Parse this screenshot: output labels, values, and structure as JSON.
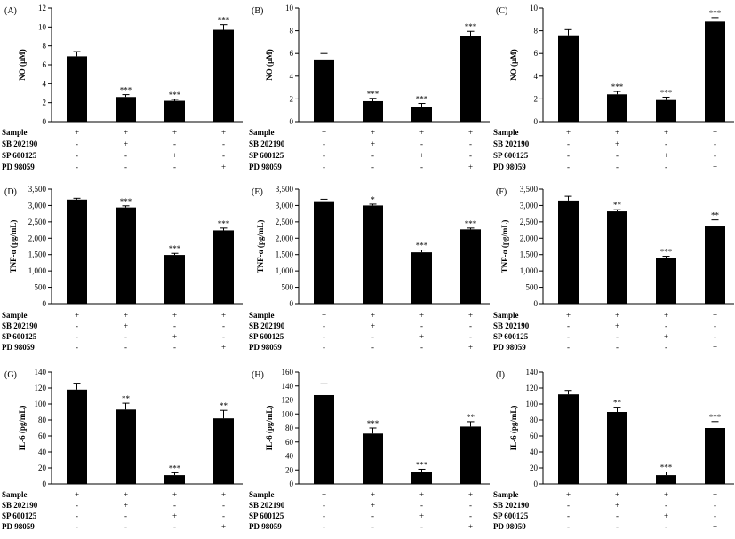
{
  "figure": {
    "row_labels": [
      "Sample",
      "SB 202190",
      "SP 600125",
      "PD 98059"
    ],
    "treatment_matrix": [
      [
        "+",
        "+",
        "+",
        "+"
      ],
      [
        "-",
        "+",
        "-",
        "-"
      ],
      [
        "-",
        "-",
        "+",
        "-"
      ],
      [
        "-",
        "-",
        "-",
        "+"
      ]
    ]
  },
  "chart_data": [
    {
      "type": "bar",
      "panel": "(A)",
      "ylabel": "NO (µM)",
      "ylim": [
        0,
        12
      ],
      "yticks": [
        0,
        2,
        4,
        6,
        8,
        10,
        12
      ],
      "tick_labels": [
        "0",
        "2",
        "4",
        "6",
        "8",
        "10",
        "12"
      ],
      "values": [
        6.9,
        2.6,
        2.2,
        9.7
      ],
      "errors": [
        0.5,
        0.25,
        0.15,
        0.55
      ],
      "significance": [
        "",
        "***",
        "***",
        "***"
      ]
    },
    {
      "type": "bar",
      "panel": "(B)",
      "ylabel": "NO (µM)",
      "ylim": [
        0,
        10
      ],
      "yticks": [
        0,
        2,
        4,
        6,
        8,
        10
      ],
      "tick_labels": [
        "0",
        "2",
        "4",
        "6",
        "8",
        "10"
      ],
      "values": [
        5.4,
        1.8,
        1.3,
        7.5
      ],
      "errors": [
        0.6,
        0.25,
        0.3,
        0.45
      ],
      "significance": [
        "",
        "***",
        "***",
        "***"
      ]
    },
    {
      "type": "bar",
      "panel": "(C)",
      "ylabel": "NO (µM)",
      "ylim": [
        0,
        10
      ],
      "yticks": [
        0,
        2,
        4,
        6,
        8,
        10
      ],
      "tick_labels": [
        "0",
        "2",
        "4",
        "6",
        "8",
        "10"
      ],
      "values": [
        7.6,
        2.4,
        1.9,
        8.8
      ],
      "errors": [
        0.5,
        0.25,
        0.25,
        0.35
      ],
      "significance": [
        "",
        "***",
        "***",
        "***"
      ]
    },
    {
      "type": "bar",
      "panel": "(D)",
      "ylabel": "TNF-α (pg/mL)",
      "ylim": [
        0,
        3500
      ],
      "yticks": [
        0,
        500,
        1000,
        1500,
        2000,
        2500,
        3000,
        3500
      ],
      "tick_labels": [
        "0",
        "500",
        "1,000",
        "1,500",
        "2,000",
        "2,500",
        "3,000",
        "3,500"
      ],
      "values": [
        3180,
        2940,
        1490,
        2240
      ],
      "errors": [
        40,
        50,
        50,
        70
      ],
      "significance": [
        "",
        "***",
        "***",
        "***"
      ]
    },
    {
      "type": "bar",
      "panel": "(E)",
      "ylabel": "TNF-α (pg/mL)",
      "ylim": [
        0,
        3500
      ],
      "yticks": [
        0,
        500,
        1000,
        1500,
        2000,
        2500,
        3000,
        3500
      ],
      "tick_labels": [
        "0",
        "500",
        "1,000",
        "1,500",
        "2,000",
        "2,500",
        "3,000",
        "3,500"
      ],
      "values": [
        3130,
        3000,
        1570,
        2270
      ],
      "errors": [
        60,
        40,
        70,
        40
      ],
      "significance": [
        "",
        "*",
        "***",
        "***"
      ]
    },
    {
      "type": "bar",
      "panel": "(F)",
      "ylabel": "TNF-α (pg/mL)",
      "ylim": [
        0,
        3500
      ],
      "yticks": [
        0,
        500,
        1000,
        1500,
        2000,
        2500,
        3000,
        3500
      ],
      "tick_labels": [
        "0",
        "500",
        "1,000",
        "1,500",
        "2,000",
        "2,500",
        "3,000",
        "3,500"
      ],
      "values": [
        3150,
        2820,
        1390,
        2360
      ],
      "errors": [
        130,
        50,
        60,
        200
      ],
      "significance": [
        "",
        "**",
        "***",
        "**"
      ]
    },
    {
      "type": "bar",
      "panel": "(G)",
      "ylabel": "IL-6 (pg/mL)",
      "ylim": [
        0,
        140
      ],
      "yticks": [
        0,
        20,
        40,
        60,
        80,
        100,
        120,
        140
      ],
      "tick_labels": [
        "0",
        "20",
        "40",
        "60",
        "80",
        "100",
        "120",
        "140"
      ],
      "values": [
        118,
        93,
        11,
        82
      ],
      "errors": [
        8,
        8,
        3,
        10
      ],
      "significance": [
        "",
        "**",
        "***",
        "**"
      ]
    },
    {
      "type": "bar",
      "panel": "(H)",
      "ylabel": "IL-6 (pg/mL)",
      "ylim": [
        0,
        160
      ],
      "yticks": [
        0,
        20,
        40,
        60,
        80,
        100,
        120,
        140,
        160
      ],
      "tick_labels": [
        "0",
        "20",
        "40",
        "60",
        "80",
        "100",
        "120",
        "140",
        "160"
      ],
      "values": [
        127,
        72,
        17,
        82
      ],
      "errors": [
        16,
        8,
        4,
        7
      ],
      "significance": [
        "",
        "***",
        "***",
        "**"
      ]
    },
    {
      "type": "bar",
      "panel": "(I)",
      "ylabel": "IL-6 (pg/mL)",
      "ylim": [
        0,
        140
      ],
      "yticks": [
        0,
        20,
        40,
        60,
        80,
        100,
        120,
        140
      ],
      "tick_labels": [
        "0",
        "20",
        "40",
        "60",
        "80",
        "100",
        "120",
        "140"
      ],
      "values": [
        112,
        90,
        11,
        70
      ],
      "errors": [
        5,
        6,
        4,
        8
      ],
      "significance": [
        "",
        "**",
        "***",
        "***"
      ]
    }
  ]
}
